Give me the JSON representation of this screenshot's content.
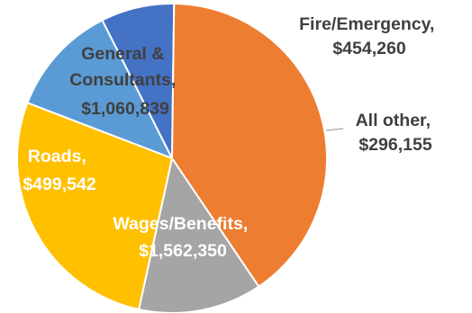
{
  "chart_data": {
    "type": "pie",
    "title": "",
    "legend": "none",
    "slices": [
      {
        "label": "Fire/Emergency",
        "value": 454260,
        "value_text": "$454,260",
        "color": "#5b9bd5"
      },
      {
        "label": "All other",
        "value": 296155,
        "value_text": "$296,155",
        "color": "#4472c4"
      },
      {
        "label": "Wages/Benefits",
        "value": 1562350,
        "value_text": "$1,562,350",
        "color": "#ed7d31"
      },
      {
        "label": "Roads",
        "value": 499542,
        "value_text": "$499,542",
        "color": "#a5a5a5"
      },
      {
        "label": "General & Consultants",
        "value": 1060839,
        "value_text": "$1,060,839",
        "color": "#ffc000"
      }
    ],
    "label_lines": {
      "fire_emergency": [
        "Fire/Emergency,",
        "$454,260"
      ],
      "all_other": [
        "All other,",
        "$296,155"
      ],
      "wages_benefits": [
        "Wages/Benefits,",
        "$1,562,350"
      ],
      "roads": [
        "Roads,",
        "$499,542"
      ],
      "general_consultants": [
        "General &",
        "Consultants,",
        "$1,060,839"
      ]
    }
  }
}
